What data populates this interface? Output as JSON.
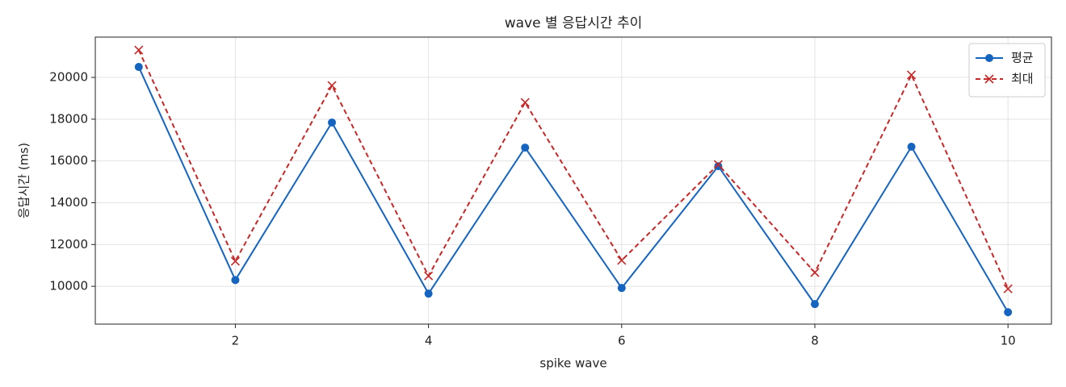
{
  "chart_data": {
    "type": "line",
    "title": "wave 별 응답시간 추이",
    "x_label": "spike wave",
    "y_label": "응답시간 (ms)",
    "x": [
      1,
      2,
      3,
      4,
      5,
      6,
      7,
      8,
      9,
      10
    ],
    "series": [
      {
        "name": "평균",
        "color": "#1565c0",
        "marker": "o",
        "dash": false,
        "values": [
          20500,
          10300,
          17840,
          9650,
          16640,
          9920,
          15750,
          9150,
          16680,
          8760
        ]
      },
      {
        "name": "최대",
        "color": "#c62828",
        "marker": "x",
        "dash": true,
        "values": [
          21310,
          11200,
          19610,
          10500,
          18800,
          11240,
          15830,
          10660,
          20120,
          9880
        ]
      }
    ],
    "xlim": [
      0.55,
      10.45
    ],
    "ylim": [
      8190,
      21930
    ],
    "xticks": [
      2,
      4,
      6,
      8,
      10
    ],
    "yticks": [
      10000,
      12000,
      14000,
      16000,
      18000,
      20000
    ],
    "grid": true,
    "legend": "upper right"
  }
}
